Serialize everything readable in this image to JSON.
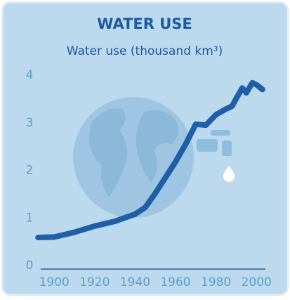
{
  "chart_data": {
    "type": "line",
    "title": "WATER USE",
    "subtitle": "Water use (thousand km³)",
    "x": [
      1892,
      1900,
      1910,
      1920,
      1930,
      1940,
      1945,
      1950,
      1955,
      1960,
      1965,
      1970,
      1975,
      1980,
      1985,
      1988,
      1990,
      1993,
      1995,
      1998,
      2000,
      2003
    ],
    "values": [
      0.59,
      0.6,
      0.7,
      0.83,
      0.93,
      1.08,
      1.22,
      1.52,
      1.85,
      2.18,
      2.55,
      2.97,
      2.95,
      3.17,
      3.29,
      3.35,
      3.51,
      3.73,
      3.63,
      3.84,
      3.8,
      3.7
    ],
    "color": "#1f5fa8",
    "xlim": [
      1885,
      2010
    ],
    "xticks": [
      1900,
      1920,
      1940,
      1960,
      1980,
      2000
    ],
    "ylim": [
      0,
      4
    ],
    "yticks": [
      0,
      1,
      2,
      3,
      4
    ]
  }
}
